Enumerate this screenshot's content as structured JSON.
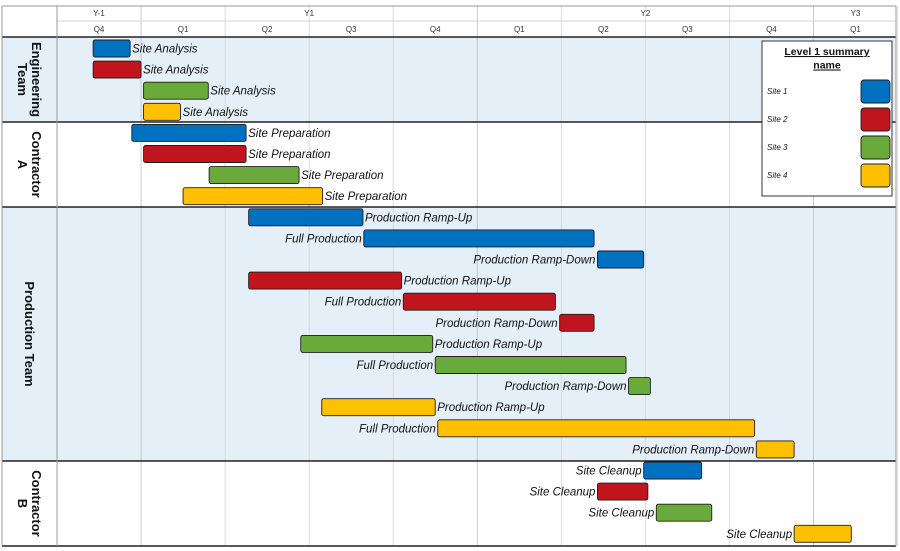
{
  "chart_data": {
    "type": "gantt",
    "timeline": {
      "years": [
        {
          "label": "Y-1",
          "quarters": 1
        },
        {
          "label": "Y1",
          "quarters": 4
        },
        {
          "label": "Y2",
          "quarters": 4
        },
        {
          "label": "Y3",
          "quarters": 1
        }
      ],
      "quarters": [
        "Q4",
        "Q1",
        "Q2",
        "Q3",
        "Q4",
        "Q1",
        "Q2",
        "Q3",
        "Q4",
        "Q1"
      ]
    },
    "legend": {
      "title": "Level 1 summary name",
      "placement": "top-right",
      "items": [
        {
          "name": "Site 1",
          "color": "#0070C0"
        },
        {
          "name": "Site 2",
          "color": "#C0151C"
        },
        {
          "name": "Site 3",
          "color": "#6AAA3A"
        },
        {
          "name": "Site 4",
          "color": "#FFC000"
        }
      ]
    },
    "lanes": [
      {
        "name": "Engineering Team",
        "label_lines": [
          "Engineering",
          "Team"
        ],
        "shaded": true,
        "tasks": [
          {
            "label": "Site Analysis",
            "site": 0,
            "start": 0.43,
            "end": 0.87,
            "label_side": "right"
          },
          {
            "label": "Site Analysis",
            "site": 1,
            "start": 0.43,
            "end": 1.0,
            "label_side": "right"
          },
          {
            "label": "Site Analysis",
            "site": 2,
            "start": 1.03,
            "end": 1.8,
            "label_side": "right"
          },
          {
            "label": "Site Analysis",
            "site": 3,
            "start": 1.03,
            "end": 1.47,
            "label_side": "right"
          }
        ]
      },
      {
        "name": "Contractor A",
        "label_lines": [
          "Contractor",
          "A"
        ],
        "shaded": false,
        "tasks": [
          {
            "label": "Site Preparation",
            "site": 0,
            "start": 0.89,
            "end": 2.25,
            "label_side": "right"
          },
          {
            "label": "Site Preparation",
            "site": 1,
            "start": 1.03,
            "end": 2.25,
            "label_side": "right"
          },
          {
            "label": "Site Preparation",
            "site": 2,
            "start": 1.81,
            "end": 2.88,
            "label_side": "right"
          },
          {
            "label": "Site Preparation",
            "site": 3,
            "start": 1.5,
            "end": 3.16,
            "label_side": "right"
          }
        ]
      },
      {
        "name": "Production Team",
        "label_lines": [
          "Production Team"
        ],
        "shaded": true,
        "tasks": [
          {
            "label": "Production Ramp-Up",
            "site": 0,
            "start": 2.28,
            "end": 3.64,
            "label_side": "right"
          },
          {
            "label": "Full Production",
            "site": 0,
            "start": 3.65,
            "end": 6.39,
            "label_side": "left"
          },
          {
            "label": "Production Ramp-Down",
            "site": 0,
            "start": 6.43,
            "end": 6.98,
            "label_side": "left"
          },
          {
            "label": "Production Ramp-Up",
            "site": 1,
            "start": 2.28,
            "end": 4.1,
            "label_side": "right"
          },
          {
            "label": "Full Production",
            "site": 1,
            "start": 4.12,
            "end": 5.93,
            "label_side": "left"
          },
          {
            "label": "Production Ramp-Down",
            "site": 1,
            "start": 5.98,
            "end": 6.39,
            "label_side": "left"
          },
          {
            "label": "Production Ramp-Up",
            "site": 2,
            "start": 2.9,
            "end": 4.47,
            "label_side": "right"
          },
          {
            "label": "Full Production",
            "site": 2,
            "start": 4.5,
            "end": 6.77,
            "label_side": "left"
          },
          {
            "label": "Production Ramp-Down",
            "site": 2,
            "start": 6.8,
            "end": 7.06,
            "label_side": "left"
          },
          {
            "label": "Production Ramp-Up",
            "site": 3,
            "start": 3.15,
            "end": 4.5,
            "label_side": "right"
          },
          {
            "label": "Full Production",
            "site": 3,
            "start": 4.53,
            "end": 8.3,
            "label_side": "left"
          },
          {
            "label": "Production Ramp-Down",
            "site": 3,
            "start": 8.32,
            "end": 8.77,
            "label_side": "left"
          }
        ]
      },
      {
        "name": "Contractor B",
        "label_lines": [
          "Contractor",
          "B"
        ],
        "shaded": false,
        "tasks": [
          {
            "label": "Site Cleanup",
            "site": 0,
            "start": 6.98,
            "end": 7.67,
            "label_side": "left"
          },
          {
            "label": "Site Cleanup",
            "site": 1,
            "start": 6.43,
            "end": 7.03,
            "label_side": "left"
          },
          {
            "label": "Site Cleanup",
            "site": 2,
            "start": 7.13,
            "end": 7.79,
            "label_side": "left"
          },
          {
            "label": "Site Cleanup",
            "site": 3,
            "start": 8.77,
            "end": 9.45,
            "label_side": "left"
          }
        ]
      }
    ]
  }
}
